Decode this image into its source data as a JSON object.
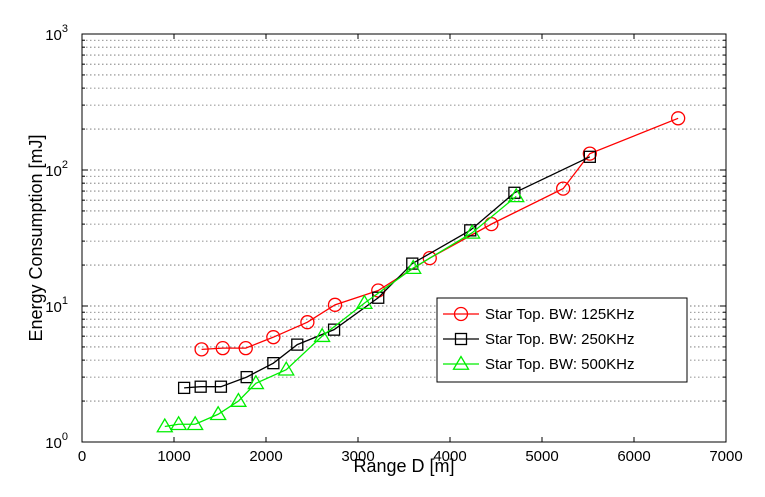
{
  "chart_data": {
    "type": "line",
    "title": "",
    "xlabel": "Range D [m]",
    "ylabel": "Energy Consumption [mJ]",
    "xlim": [
      0,
      7000
    ],
    "ylim": [
      1,
      1000
    ],
    "yscale": "log",
    "xticks": [
      "0",
      "1000",
      "2000",
      "3000",
      "4000",
      "5000",
      "6000",
      "7000"
    ],
    "yticks": [
      {
        "base": "10",
        "exp": "0"
      },
      {
        "base": "10",
        "exp": "1"
      },
      {
        "base": "10",
        "exp": "2"
      },
      {
        "base": "10",
        "exp": "3"
      }
    ],
    "grid": "horizontal dotted (major and minor)",
    "legend_position": "lower-right",
    "series": [
      {
        "name": "Star Top. BW: 125KHz",
        "color": "#ff0000",
        "marker": "circle",
        "x": [
          1300,
          1530,
          1780,
          2080,
          2450,
          2750,
          3220,
          3780,
          4450,
          5230,
          5520,
          6480
        ],
        "y": [
          4.8,
          4.9,
          4.9,
          5.9,
          7.6,
          10.2,
          13.0,
          22.5,
          40.0,
          73.0,
          132.0,
          240.0
        ]
      },
      {
        "name": "Star Top. BW: 250KHz",
        "color": "#000000",
        "marker": "square",
        "x": [
          1110,
          1290,
          1510,
          1790,
          2080,
          2340,
          2740,
          3220,
          3590,
          4220,
          4700,
          5520
        ],
        "y": [
          2.5,
          2.55,
          2.55,
          3.0,
          3.8,
          5.2,
          6.7,
          11.5,
          20.5,
          36.0,
          68.0,
          125.0
        ]
      },
      {
        "name": "Star Top. BW: 500KHz",
        "color": "#00ee00",
        "marker": "triangle",
        "x": [
          900,
          1050,
          1230,
          1480,
          1700,
          1890,
          2220,
          2610,
          3070,
          3600,
          4240,
          4720
        ],
        "y": [
          1.3,
          1.35,
          1.35,
          1.6,
          2.0,
          2.7,
          3.4,
          6.0,
          10.5,
          19.0,
          34.5,
          64.0
        ]
      }
    ]
  }
}
